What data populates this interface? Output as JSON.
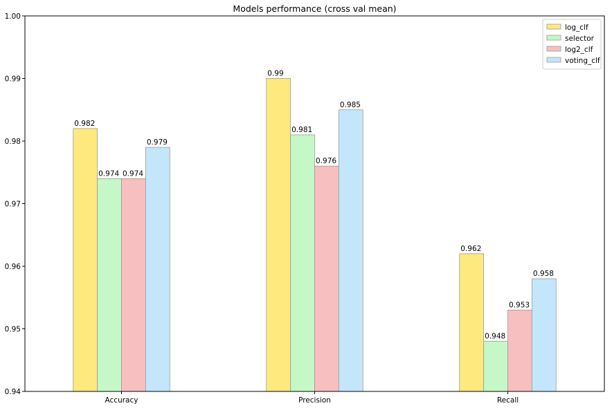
{
  "chart_data": {
    "type": "bar",
    "title": "Models performance (cross val mean)",
    "xlabel": "",
    "ylabel": "",
    "categories": [
      "Accuracy",
      "Precision",
      "Recall"
    ],
    "ylim": [
      0.94,
      1.0
    ],
    "yticks": [
      0.94,
      0.95,
      0.96,
      0.97,
      0.98,
      0.99,
      1.0
    ],
    "ytick_labels": [
      "0.94",
      "0.95",
      "0.96",
      "0.97",
      "0.98",
      "0.99",
      "1.00"
    ],
    "grid": false,
    "legend_position": "top-right",
    "series": [
      {
        "name": "log_clf",
        "values": [
          0.982,
          0.99,
          0.962
        ],
        "labels": [
          "0.982",
          "0.99",
          "0.962"
        ],
        "color": "#fde97e"
      },
      {
        "name": "selector",
        "values": [
          0.974,
          0.981,
          0.948
        ],
        "labels": [
          "0.974",
          "0.981",
          "0.948"
        ],
        "color": "#c6f7c6"
      },
      {
        "name": "log2_clf",
        "values": [
          0.974,
          0.976,
          0.953
        ],
        "labels": [
          "0.974",
          "0.976",
          "0.953"
        ],
        "color": "#f7bfbf"
      },
      {
        "name": "voting_clf",
        "values": [
          0.979,
          0.985,
          0.958
        ],
        "labels": [
          "0.979",
          "0.985",
          "0.958"
        ],
        "color": "#c4e6fa"
      }
    ],
    "bar_edge_color": "#9a9a9a"
  }
}
